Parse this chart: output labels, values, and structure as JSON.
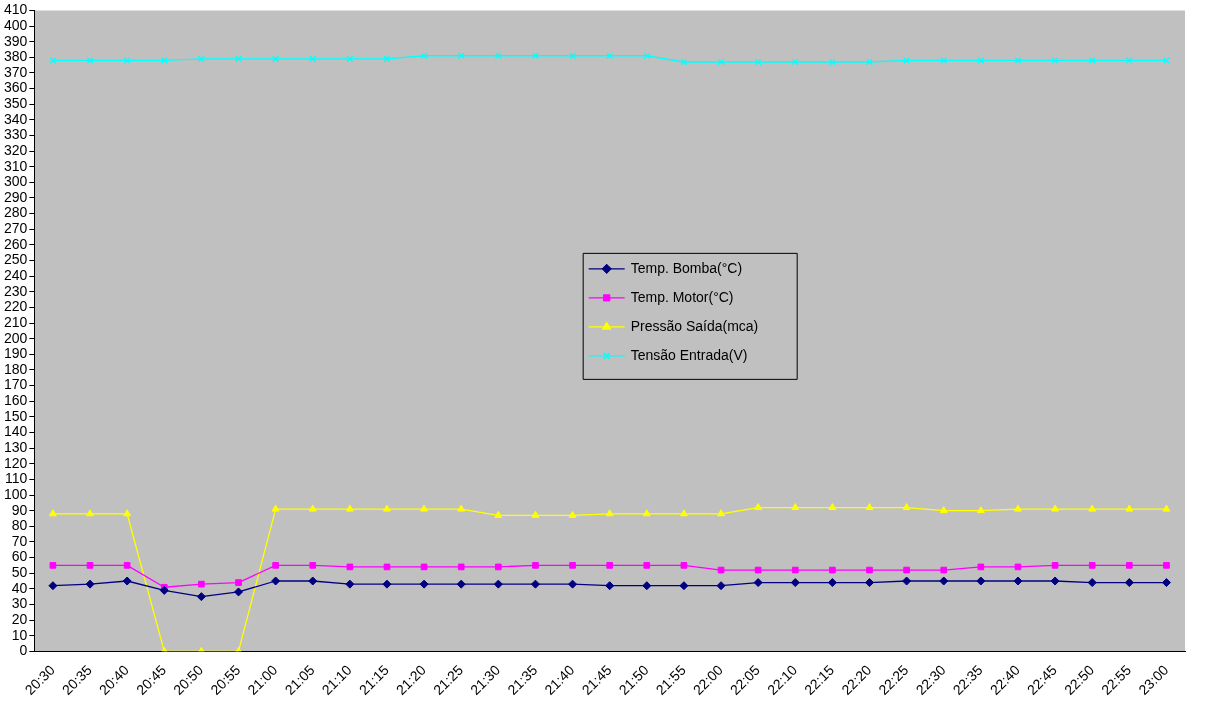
{
  "chart_data": {
    "type": "line",
    "categories": [
      "20:30",
      "20:35",
      "20:40",
      "20:45",
      "20:50",
      "20:55",
      "21:00",
      "21:05",
      "21:10",
      "21:15",
      "21:20",
      "21:25",
      "21:30",
      "21:35",
      "21:40",
      "21:45",
      "21:50",
      "21:55",
      "22:00",
      "22:05",
      "22:10",
      "22:15",
      "22:20",
      "22:25",
      "22:30",
      "22:35",
      "22:40",
      "22:45",
      "22:50",
      "22:55",
      "23:00"
    ],
    "series": [
      {
        "name": "Temp. Bomba(°C)",
        "color": "#000080",
        "marker": "diamond",
        "values": [
          42,
          43,
          45,
          39,
          35,
          38,
          45,
          45,
          43,
          43,
          43,
          43,
          43,
          43,
          43,
          42,
          42,
          42,
          42,
          44,
          44,
          44,
          44,
          45,
          45,
          45,
          45,
          45,
          44,
          44,
          44
        ]
      },
      {
        "name": "Temp. Motor(°C)",
        "color": "#ff00ff",
        "marker": "square",
        "values": [
          55,
          55,
          55,
          41,
          43,
          44,
          55,
          55,
          54,
          54,
          54,
          54,
          54,
          55,
          55,
          55,
          55,
          55,
          52,
          52,
          52,
          52,
          52,
          52,
          52,
          54,
          54,
          55,
          55,
          55,
          55
        ]
      },
      {
        "name": "Pressão Saída(mca)",
        "color": "#ffff00",
        "marker": "triangle",
        "values": [
          88,
          88,
          88,
          0,
          0,
          0,
          91,
          91,
          91,
          91,
          91,
          91,
          87,
          87,
          87,
          88,
          88,
          88,
          88,
          92,
          92,
          92,
          92,
          92,
          90,
          90,
          91,
          91,
          91,
          91,
          91
        ]
      },
      {
        "name": "Tensão Entrada(V)",
        "color": "#00ffff",
        "marker": "cross",
        "values": [
          378,
          378,
          378,
          378,
          379,
          379,
          379,
          379,
          379,
          379,
          381,
          381,
          381,
          381,
          381,
          381,
          381,
          377,
          377,
          377,
          377,
          377,
          377,
          378,
          378,
          378,
          378,
          378,
          378,
          378,
          378
        ]
      }
    ],
    "ylim": [
      0,
      410
    ],
    "yticks": [
      0,
      10,
      20,
      30,
      40,
      50,
      60,
      70,
      80,
      90,
      100,
      110,
      120,
      130,
      140,
      150,
      160,
      170,
      180,
      190,
      200,
      210,
      220,
      230,
      240,
      250,
      260,
      270,
      280,
      290,
      300,
      310,
      320,
      330,
      340,
      350,
      360,
      370,
      380,
      390,
      400,
      410
    ],
    "grid": false,
    "legend": "center",
    "line_style": "solid"
  }
}
